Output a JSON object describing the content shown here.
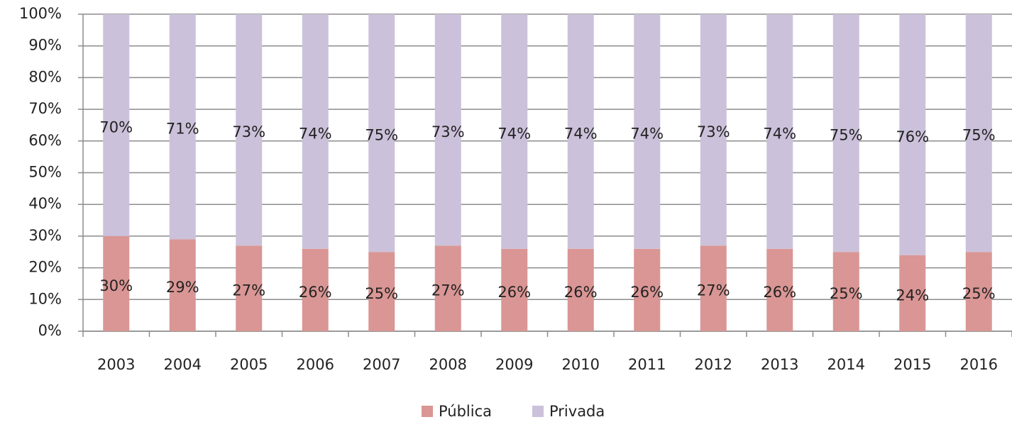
{
  "chart_data": {
    "type": "stacked_bar",
    "categories": [
      "2003",
      "2004",
      "2005",
      "2006",
      "2007",
      "2008",
      "2009",
      "2010",
      "2011",
      "2012",
      "2013",
      "2014",
      "2015",
      "2016"
    ],
    "series": [
      {
        "name": "Pública",
        "color": "#d99694",
        "values": [
          30,
          29,
          27,
          26,
          25,
          27,
          26,
          26,
          26,
          27,
          26,
          25,
          24,
          25
        ],
        "value_labels": [
          "30%",
          "29%",
          "27%",
          "26%",
          "25%",
          "27%",
          "26%",
          "26%",
          "26%",
          "27%",
          "26%",
          "25%",
          "24%",
          "25%"
        ]
      },
      {
        "name": "Privada",
        "color": "#ccc1da",
        "values": [
          70,
          71,
          73,
          74,
          75,
          73,
          74,
          74,
          74,
          73,
          74,
          75,
          76,
          75
        ],
        "value_labels": [
          "70%",
          "71%",
          "73%",
          "74%",
          "75%",
          "73%",
          "74%",
          "74%",
          "74%",
          "73%",
          "74%",
          "75%",
          "76%",
          "75%"
        ]
      }
    ],
    "ylim": [
      0,
      100
    ],
    "yticks": [
      {
        "value": 0,
        "label": "0%"
      },
      {
        "value": 10,
        "label": "10%"
      },
      {
        "value": 20,
        "label": "20%"
      },
      {
        "value": 30,
        "label": "30%"
      },
      {
        "value": 40,
        "label": "40%"
      },
      {
        "value": 50,
        "label": "50%"
      },
      {
        "value": 60,
        "label": "60%"
      },
      {
        "value": 70,
        "label": "70%"
      },
      {
        "value": 80,
        "label": "80%"
      },
      {
        "value": 90,
        "label": "90%"
      },
      {
        "value": 100,
        "label": "100%"
      }
    ],
    "grid": true,
    "legend": "bottom"
  }
}
